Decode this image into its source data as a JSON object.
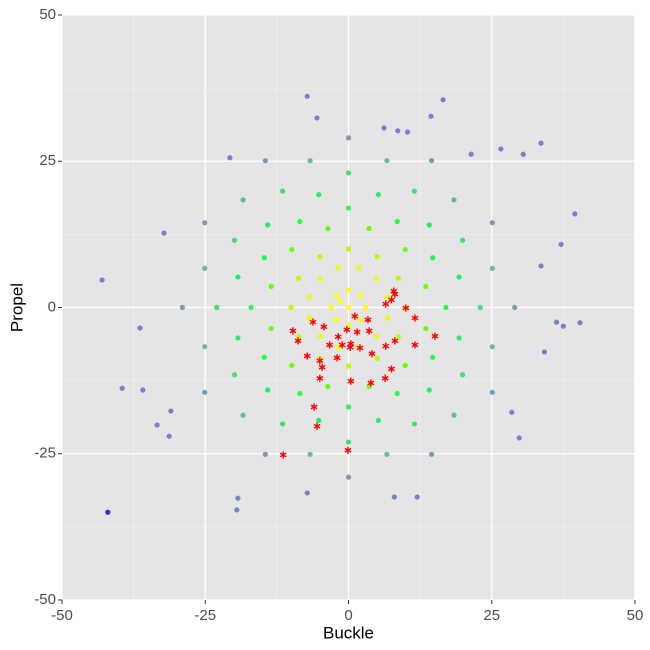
{
  "chart_data": {
    "type": "scatter",
    "xlabel": "Buckle",
    "ylabel": "Propel",
    "xlim": [
      -50,
      50
    ],
    "ylim": [
      -50,
      50
    ],
    "xticks": [
      -50,
      -25,
      0,
      25,
      50
    ],
    "yticks": [
      -50,
      -25,
      0,
      25,
      50
    ],
    "grid": true,
    "background": "#e5e5e5",
    "series": [
      {
        "color": "#ffff00",
        "x": [
          0,
          1,
          -1.5,
          3,
          2.1,
          0,
          -2.1,
          -3,
          -2.1,
          0,
          2.1
        ],
        "y": [
          0,
          -1.5,
          1,
          0,
          2.1,
          3,
          2.1,
          0,
          -2.1,
          -3,
          -2.1
        ]
      },
      {
        "color": "#eaff00",
        "x": [
          6.8,
          4.9,
          1.8,
          -1.8,
          -4.9,
          -6.8,
          -6.8,
          -4.9,
          -1.8,
          1.8,
          4.9,
          6.8
        ],
        "y": [
          1.8,
          4.9,
          6.8,
          6.8,
          4.9,
          1.8,
          -1.8,
          -4.9,
          -6.8,
          -6.8,
          -4.9,
          -1.8
        ]
      },
      {
        "color": "#b8ff00",
        "x": [
          10,
          8.7,
          5,
          0,
          -5,
          -8.7,
          -10,
          -8.7,
          -5,
          0,
          5,
          8.7
        ],
        "y": [
          0,
          5,
          8.7,
          10,
          8.7,
          5,
          0,
          -5,
          -8.7,
          -10,
          -8.7,
          -5
        ]
      },
      {
        "color": "#66ff11",
        "x": [
          13.5,
          9.9,
          3.6,
          -3.6,
          -9.9,
          -13.5,
          -13.5,
          -9.9,
          -3.6,
          3.6,
          9.9,
          13.5
        ],
        "y": [
          3.6,
          9.9,
          13.5,
          13.5,
          9.9,
          3.6,
          -3.6,
          -9.9,
          -13.5,
          -13.5,
          -9.9,
          -3.6
        ]
      },
      {
        "color": "#22ff44",
        "x": [
          17,
          14.7,
          8.5,
          0,
          -8.5,
          -14.7,
          -17,
          -14.7,
          -8.5,
          0,
          8.5,
          14.7
        ],
        "y": [
          0,
          8.5,
          14.7,
          17,
          14.7,
          8.5,
          0,
          -8.5,
          -14.7,
          -17,
          -14.7,
          -8.5
        ]
      },
      {
        "color": "#22ee66",
        "x": [
          19.3,
          14.1,
          5.2,
          -5.2,
          -14.1,
          -19.3,
          -19.3,
          -14.1,
          -5.2,
          5.2,
          14.1,
          19.3
        ],
        "y": [
          5.2,
          14.1,
          19.3,
          19.3,
          14.1,
          5.2,
          -5.2,
          -14.1,
          -19.3,
          -19.3,
          -14.1,
          -5.2
        ]
      },
      {
        "color": "#44dd77",
        "x": [
          23,
          19.9,
          11.5,
          0,
          -11.5,
          -19.9,
          -23,
          -19.9,
          -11.5,
          0,
          11.5,
          19.9
        ],
        "y": [
          0,
          11.5,
          19.9,
          23,
          19.9,
          11.5,
          0,
          -11.5,
          -19.9,
          -23,
          -19.9,
          -11.5
        ]
      },
      {
        "color": "#66bb99",
        "x": [
          25.1,
          18.4,
          6.7,
          -6.7,
          -18.4,
          -25.1,
          -25.1,
          -18.4,
          -6.7,
          6.7,
          18.4,
          25.1
        ],
        "y": [
          6.7,
          18.4,
          25.1,
          25.1,
          18.4,
          6.7,
          -6.7,
          -18.4,
          -25.1,
          -25.1,
          -18.4,
          -6.7
        ]
      },
      {
        "color": "#7a9cad",
        "x": [
          29,
          25.1,
          14.5,
          0,
          -14.5,
          -25.1,
          -29,
          -25.1,
          -14.5,
          0,
          14.5,
          25.1
        ],
        "y": [
          0,
          14.5,
          25.1,
          29,
          25.1,
          14.5,
          0,
          -14.5,
          -25.1,
          -29,
          -25.1,
          -14.5
        ]
      },
      {
        "color": "#7a7fcf",
        "x": [
          -7.2,
          -5.5,
          16.5,
          14.4,
          6.2,
          8.6,
          10.3,
          33.6,
          30.5,
          26.6,
          21.4,
          -20.7,
          -32.2,
          -43.0,
          39.5,
          37.1,
          40.4,
          37.5,
          36.3,
          33.6,
          34.2,
          -36.4,
          -39.5,
          -35.9,
          -19.3,
          -19.5,
          8.0,
          12.0,
          29.8,
          28.5,
          -33.4,
          -31.3,
          -31.0,
          -7.2
        ],
        "y": [
          36.1,
          32.4,
          35.5,
          32.7,
          30.7,
          30.2,
          30.0,
          28.1,
          26.2,
          27.1,
          26.2,
          25.6,
          12.7,
          4.7,
          16.0,
          10.8,
          -2.6,
          -3.2,
          -2.5,
          7.1,
          -7.6,
          -3.5,
          -13.8,
          -14.1,
          -32.6,
          -34.6,
          -32.4,
          -32.4,
          -22.3,
          -17.9,
          -20.1,
          -22.0,
          -17.7,
          -31.7
        ]
      },
      {
        "color": "#4b1fe0",
        "x": [
          -42.0
        ],
        "y": [
          -35.0
        ]
      },
      {
        "color": "#ff0000",
        "marker": "asterisk",
        "x": [
          -9.7,
          -8.8,
          -7.2,
          -6.2,
          -4.3,
          -5.0,
          -4.6,
          -5.0,
          -3.3,
          -1.8,
          -1.1,
          -0.3,
          0.3,
          0.4,
          1.1,
          1.5,
          2.0,
          0.4,
          -2.0,
          3.4,
          3.6,
          4.1,
          3.9,
          6.4,
          6.5,
          6.5,
          7.5,
          7.9,
          8.1,
          8.1,
          7.5,
          10.0,
          11.6,
          11.6,
          15.1,
          -6.0,
          -5.5,
          -11.4,
          -0.1
        ],
        "y": [
          -4.0,
          -5.7,
          -8.3,
          -2.5,
          -3.3,
          -9.1,
          -10.2,
          -12.1,
          -6.4,
          -5.0,
          -6.4,
          -3.8,
          -6.8,
          -6.2,
          -1.5,
          -4.2,
          -6.9,
          -12.6,
          -8.6,
          -2.1,
          -4.0,
          -7.9,
          -12.9,
          -12.1,
          -6.6,
          0.6,
          1.3,
          2.8,
          2.3,
          -5.7,
          -10.5,
          -0.1,
          -1.8,
          -6.4,
          -4.9,
          -17.0,
          -20.3,
          -25.2,
          -24.4
        ]
      }
    ]
  }
}
